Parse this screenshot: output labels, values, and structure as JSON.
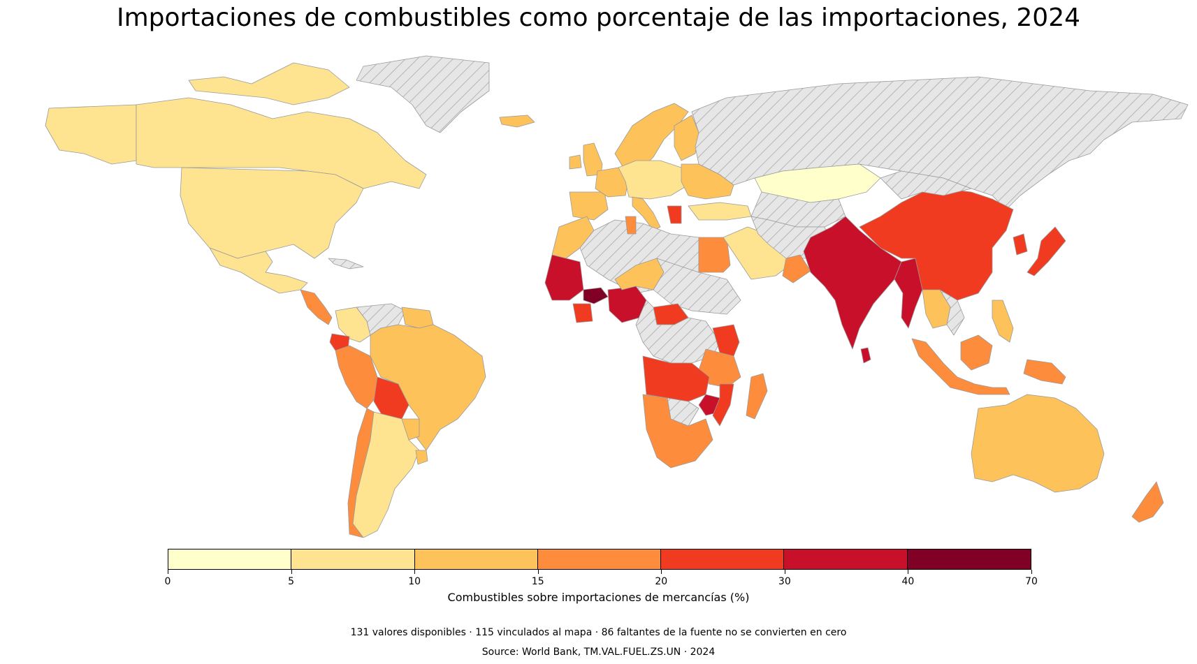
{
  "title": "Importaciones de combustibles como porcentaje de las importaciones, 2024",
  "legend": {
    "label": "Combustibles sobre importaciones de mercancías (%)",
    "breaks": [
      0,
      5,
      10,
      15,
      20,
      30,
      40,
      70
    ],
    "tick_labels": [
      "0",
      "5",
      "10",
      "15",
      "20",
      "30",
      "40",
      "70"
    ],
    "colors": [
      "#ffffcc",
      "#fee391",
      "#fec25a",
      "#fd8d3c",
      "#f03b20",
      "#c9102a",
      "#800026"
    ],
    "no_data_style": "grey-hatched"
  },
  "note": "131 valores disponibles · 115 vinculados al mapa · 86 faltantes de la fuente no se convierten en cero",
  "source": "Source: World Bank, TM.VAL.FUEL.ZS.UN · 2024",
  "map": {
    "no_data_color": "#e6e6e6",
    "regions": [
      {
        "id": "alaska",
        "bin": 1
      },
      {
        "id": "canada",
        "bin": 1
      },
      {
        "id": "canada-arctic",
        "bin": 1
      },
      {
        "id": "usa",
        "bin": 1
      },
      {
        "id": "mexico",
        "bin": 1
      },
      {
        "id": "greenland",
        "bin": null
      },
      {
        "id": "central-america",
        "bin": 3
      },
      {
        "id": "cuba",
        "bin": null
      },
      {
        "id": "colombia",
        "bin": 1
      },
      {
        "id": "venezuela",
        "bin": null
      },
      {
        "id": "guianas",
        "bin": 2
      },
      {
        "id": "ecuador",
        "bin": 4
      },
      {
        "id": "peru",
        "bin": 3
      },
      {
        "id": "brazil",
        "bin": 2
      },
      {
        "id": "bolivia",
        "bin": 4
      },
      {
        "id": "paraguay",
        "bin": 2
      },
      {
        "id": "chile",
        "bin": 3
      },
      {
        "id": "argentina",
        "bin": 1
      },
      {
        "id": "uruguay",
        "bin": 2
      },
      {
        "id": "iceland",
        "bin": 2
      },
      {
        "id": "uk",
        "bin": 2
      },
      {
        "id": "ireland",
        "bin": 2
      },
      {
        "id": "scandinavia",
        "bin": 2
      },
      {
        "id": "finland",
        "bin": 2
      },
      {
        "id": "iberia",
        "bin": 2
      },
      {
        "id": "france",
        "bin": 2
      },
      {
        "id": "central-europe",
        "bin": 1
      },
      {
        "id": "italy",
        "bin": 2
      },
      {
        "id": "east-europe",
        "bin": 2
      },
      {
        "id": "turkey",
        "bin": 1
      },
      {
        "id": "greece",
        "bin": 4
      },
      {
        "id": "russia",
        "bin": null
      },
      {
        "id": "kazakhstan",
        "bin": 0
      },
      {
        "id": "central-asia",
        "bin": null
      },
      {
        "id": "morocco",
        "bin": 2
      },
      {
        "id": "algeria-libya",
        "bin": null
      },
      {
        "id": "tunisia",
        "bin": 3
      },
      {
        "id": "egypt",
        "bin": 3
      },
      {
        "id": "mauritania-senegal",
        "bin": 5
      },
      {
        "id": "burkina-faso",
        "bin": 6
      },
      {
        "id": "cote-divoire",
        "bin": 4
      },
      {
        "id": "nigeria",
        "bin": 5
      },
      {
        "id": "niger-chad",
        "bin": 2
      },
      {
        "id": "sahel",
        "bin": null
      },
      {
        "id": "car",
        "bin": 4
      },
      {
        "id": "central-africa",
        "bin": null
      },
      {
        "id": "kenya-tanzania",
        "bin": 4
      },
      {
        "id": "east-africa",
        "bin": 3
      },
      {
        "id": "angola-zambia",
        "bin": 4
      },
      {
        "id": "zimbabwe",
        "bin": 5
      },
      {
        "id": "mozambique",
        "bin": 4
      },
      {
        "id": "namibia-safrica",
        "bin": 3
      },
      {
        "id": "botswana",
        "bin": null
      },
      {
        "id": "madagascar",
        "bin": 3
      },
      {
        "id": "saudi-arabia",
        "bin": 1
      },
      {
        "id": "iran-iraq",
        "bin": null
      },
      {
        "id": "oman",
        "bin": 3
      },
      {
        "id": "pakistan-india",
        "bin": 5
      },
      {
        "id": "sri-lanka",
        "bin": 5
      },
      {
        "id": "myanmar-bangladesh",
        "bin": 5
      },
      {
        "id": "china",
        "bin": 4
      },
      {
        "id": "mongolia",
        "bin": null
      },
      {
        "id": "korea",
        "bin": 4
      },
      {
        "id": "japan",
        "bin": 4
      },
      {
        "id": "thailand-cambodia",
        "bin": 2
      },
      {
        "id": "vietnam",
        "bin": null
      },
      {
        "id": "philippines",
        "bin": 2
      },
      {
        "id": "indonesia",
        "bin": 3
      },
      {
        "id": "borneo",
        "bin": 3
      },
      {
        "id": "papua",
        "bin": 3
      },
      {
        "id": "australia",
        "bin": 2
      },
      {
        "id": "new-zealand",
        "bin": 3
      }
    ]
  }
}
